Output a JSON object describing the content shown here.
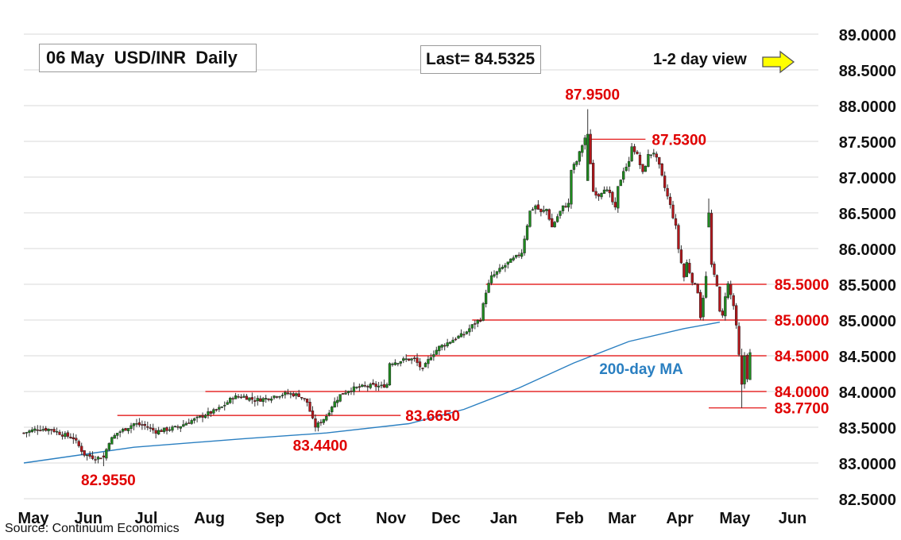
{
  "header": {
    "title": "06 May  USD/INR  Daily",
    "last_label": "Last= 84.5325",
    "view_label": "1-2 day view",
    "view_arrow_icon": "right-arrow-icon"
  },
  "source": "Source: Continuum Economics",
  "colors": {
    "line_red": "#e00000",
    "label_red": "#e00000",
    "ma_blue": "#2a7fc1",
    "candle_up": "#1e8a1e",
    "candle_down": "#b4161b",
    "arrow_yellow": "#ffff00",
    "grid": "#d9d9d9"
  },
  "chart_data": {
    "type": "candlestick",
    "title": "06 May  USD/INR  Daily",
    "ylim": [
      82.5,
      89.0
    ],
    "y_ticks": [
      "89.0000",
      "88.5000",
      "88.0000",
      "87.5000",
      "87.0000",
      "86.5000",
      "86.0000",
      "85.5000",
      "85.0000",
      "84.5000",
      "84.0000",
      "83.5000",
      "83.0000",
      "82.5000"
    ],
    "y_tick_values": [
      89.0,
      88.5,
      88.0,
      87.5,
      87.0,
      86.5,
      86.0,
      85.5,
      85.0,
      84.5,
      84.0,
      83.5,
      83.0,
      82.5
    ],
    "x_months": [
      "May",
      "Jun",
      "Jul",
      "Aug",
      "Sep",
      "Oct",
      "Nov",
      "Dec",
      "Jan",
      "Feb",
      "Mar",
      "Apr",
      "May",
      "Jun"
    ],
    "x_month_index": [
      0,
      20,
      41,
      64,
      86,
      107,
      130,
      150,
      171,
      195,
      214,
      235,
      255,
      276
    ],
    "grid": "horizontal",
    "last": 84.5325,
    "moving_average": {
      "name": "200-day MA",
      "points": [
        [
          0,
          83.0
        ],
        [
          40,
          83.22
        ],
        [
          80,
          83.34
        ],
        [
          110,
          83.42
        ],
        [
          140,
          83.55
        ],
        [
          160,
          83.75
        ],
        [
          180,
          84.05
        ],
        [
          200,
          84.4
        ],
        [
          220,
          84.7
        ],
        [
          240,
          84.88
        ],
        [
          253,
          84.97
        ]
      ]
    },
    "levels": [
      {
        "value": 87.53,
        "label": "87.5300",
        "from": 205,
        "to": 226
      },
      {
        "value": 85.5,
        "label": "85.5000",
        "from": 168,
        "to": 270
      },
      {
        "value": 85.0,
        "label": "85.0000",
        "from": 163,
        "to": 270
      },
      {
        "value": 84.5,
        "label": "84.5000",
        "from": 139,
        "to": 270
      },
      {
        "value": 84.0,
        "label": "84.0000",
        "from": 66,
        "to": 270
      },
      {
        "value": 83.77,
        "label": "83.7700",
        "from": 249,
        "to": 270
      },
      {
        "value": 83.665,
        "label": "83.6650",
        "from": 34,
        "to": 137
      }
    ],
    "annotations": [
      {
        "label": "87.9500",
        "x": 205,
        "value": 87.95,
        "position": "above"
      },
      {
        "label": "83.4400",
        "x": 106,
        "value": 83.44,
        "position": "below"
      },
      {
        "label": "82.9550",
        "x": 29,
        "value": 82.955,
        "position": "below"
      }
    ],
    "series": [
      {
        "name": "USD/INR",
        "anchors": [
          [
            0,
            83.42
          ],
          [
            5,
            83.48
          ],
          [
            10,
            83.47
          ],
          [
            14,
            83.4
          ],
          [
            18,
            83.35
          ],
          [
            22,
            83.12
          ],
          [
            26,
            83.07
          ],
          [
            29,
            83.08
          ],
          [
            31,
            83.3
          ],
          [
            34,
            83.42
          ],
          [
            37,
            83.48
          ],
          [
            40,
            83.55
          ],
          [
            44,
            83.52
          ],
          [
            48,
            83.44
          ],
          [
            52,
            83.47
          ],
          [
            56,
            83.5
          ],
          [
            60,
            83.58
          ],
          [
            63,
            83.62
          ],
          [
            66,
            83.68
          ],
          [
            69,
            83.72
          ],
          [
            72,
            83.78
          ],
          [
            76,
            83.92
          ],
          [
            80,
            83.93
          ],
          [
            84,
            83.88
          ],
          [
            88,
            83.9
          ],
          [
            92,
            83.95
          ],
          [
            96,
            83.97
          ],
          [
            100,
            83.95
          ],
          [
            103,
            83.85
          ],
          [
            105,
            83.6
          ],
          [
            106,
            83.5
          ],
          [
            108,
            83.58
          ],
          [
            110,
            83.66
          ],
          [
            112,
            83.8
          ],
          [
            115,
            83.95
          ],
          [
            118,
            84.02
          ],
          [
            121,
            84.05
          ],
          [
            124,
            84.07
          ],
          [
            127,
            84.08
          ],
          [
            130,
            84.07
          ],
          [
            132,
            84.1
          ],
          [
            133,
            84.4
          ],
          [
            136,
            84.42
          ],
          [
            139,
            84.45
          ],
          [
            142,
            84.45
          ],
          [
            145,
            84.3
          ],
          [
            148,
            84.5
          ],
          [
            151,
            84.62
          ],
          [
            154,
            84.68
          ],
          [
            157,
            84.75
          ],
          [
            160,
            84.8
          ],
          [
            163,
            84.92
          ],
          [
            166,
            85.02
          ],
          [
            168,
            85.4
          ],
          [
            170,
            85.6
          ],
          [
            173,
            85.7
          ],
          [
            176,
            85.8
          ],
          [
            179,
            85.88
          ],
          [
            181,
            85.95
          ],
          [
            182,
            86.15
          ],
          [
            184,
            86.52
          ],
          [
            186,
            86.6
          ],
          [
            188,
            86.5
          ],
          [
            190,
            86.55
          ],
          [
            192,
            86.3
          ],
          [
            194,
            86.45
          ],
          [
            196,
            86.58
          ],
          [
            198,
            86.62
          ],
          [
            199,
            87.1
          ],
          [
            201,
            87.22
          ],
          [
            203,
            87.45
          ],
          [
            204,
            87.55
          ],
          [
            205,
            87.6
          ],
          [
            206,
            87.2
          ],
          [
            207,
            86.8
          ],
          [
            209,
            86.75
          ],
          [
            211,
            86.85
          ],
          [
            213,
            86.75
          ],
          [
            215,
            86.55
          ],
          [
            216,
            86.85
          ],
          [
            218,
            87.1
          ],
          [
            220,
            87.2
          ],
          [
            221,
            87.45
          ],
          [
            223,
            87.3
          ],
          [
            225,
            87.05
          ],
          [
            227,
            87.3
          ],
          [
            229,
            87.35
          ],
          [
            231,
            87.15
          ],
          [
            233,
            86.85
          ],
          [
            235,
            86.6
          ],
          [
            237,
            86.3
          ],
          [
            238,
            86.0
          ],
          [
            240,
            85.6
          ],
          [
            241,
            85.8
          ],
          [
            243,
            85.55
          ],
          [
            245,
            85.4
          ],
          [
            246,
            85.05
          ],
          [
            248,
            85.6
          ],
          [
            249,
            86.2
          ],
          [
            250,
            85.75
          ],
          [
            252,
            85.5
          ],
          [
            253,
            85.1
          ],
          [
            254,
            85.05
          ],
          [
            255,
            85.35
          ],
          [
            256,
            85.5
          ],
          [
            257,
            85.35
          ],
          [
            258,
            85.2
          ],
          [
            259,
            84.9
          ],
          [
            260,
            84.5
          ],
          [
            261,
            84.1
          ],
          [
            262,
            84.5
          ],
          [
            263,
            84.2
          ],
          [
            264,
            84.53
          ]
        ]
      }
    ]
  }
}
